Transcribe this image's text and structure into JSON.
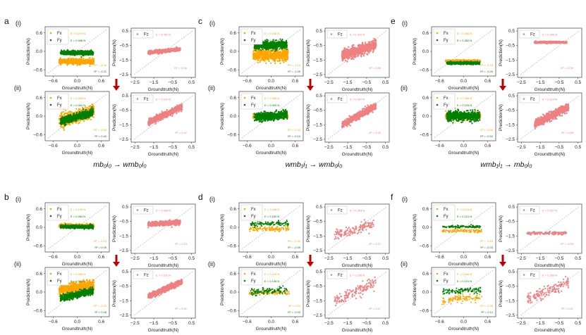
{
  "colors": {
    "fx": "#FFA500",
    "fy": "#008000",
    "fz": "#F08080",
    "arrow": "#C00000",
    "diag": "#888888"
  },
  "common": {
    "xlabel": "Groundtruth(N)",
    "ylabel": "Prediction(N)",
    "xy_ticks_xy": [
      "-0.6",
      "0.0",
      "0.6"
    ],
    "z_ticks_x": [
      "-2.5",
      "-1.5",
      "-0.5",
      "0.5"
    ],
    "z_ticks_y": [
      "0.5",
      "-0.5",
      "-1.5",
      "-2.5"
    ],
    "legend_fx": "Fx",
    "legend_fy": "Fy",
    "legend_fz": "Fz"
  },
  "chart_data": [
    {
      "type": "scatter",
      "panel": "a",
      "caption": "mb₀i₀ → wmb₀i₀",
      "rows": [
        {
          "row": "(i)",
          "xy": {
            "fx": {
              "E": "E = 0.279 N",
              "R2": "R² = -4.30",
              "y_center": -0.33,
              "y_spread": 0.07
            },
            "fy": {
              "E": "E = 0.096 N",
              "R2": "R² = -0.11",
              "y_center": -0.05,
              "y_spread": 0.05,
              "slope": 0.0
            },
            "density": "dense"
          },
          "z": {
            "E": "E = 0.452 N",
            "R2": "R² = -0.06",
            "x_range": [
              -1.8,
              -0.1
            ],
            "y_start": -1.0,
            "y_end": -0.75,
            "spread": 0.12
          }
        },
        {
          "row": "(ii)",
          "xy": {
            "fx": {
              "E": "E = 0.096 N",
              "R2": "R² = -0.04",
              "y_center": 0.0,
              "y_spread": 0.16,
              "slope": 0.35
            },
            "fy": {
              "E": "E = 0.062 N",
              "R2": "R² = 0.49",
              "y_center": -0.02,
              "y_spread": 0.1,
              "slope": 0.4
            },
            "density": "dense"
          },
          "z": {
            "E": "E = 0.102 N",
            "R2": "R² = 0.92",
            "x_range": [
              -1.8,
              0.0
            ],
            "y_start": -1.35,
            "y_end": -0.25,
            "spread": 0.22
          }
        }
      ]
    },
    {
      "type": "scatter",
      "panel": "b",
      "caption": "wmb₀i₀ → mb₀i₀",
      "rows": [
        {
          "row": "(i)",
          "xy": {
            "fx": {
              "E": "E = 0.109 N",
              "R2": "R² = -0.13",
              "y_center": 0.05,
              "y_spread": 0.04,
              "slope": 0.0
            },
            "fy": {
              "E": "E = 0.084 N",
              "R2": "R² = 0.05",
              "y_center": 0.02,
              "y_spread": 0.04,
              "slope": 0.0
            },
            "density": "dense"
          },
          "z": {
            "E": "E = 0.286 N",
            "R2": "R² = 0.13",
            "x_range": [
              -1.8,
              -0.1
            ],
            "y_start": -0.7,
            "y_end": -0.55,
            "spread": 0.15
          }
        },
        {
          "row": "(ii)",
          "xy": {
            "fx": {
              "E": "E = 0.095 N",
              "R2": "R² = -0.09",
              "y_center": 0.15,
              "y_spread": 0.14,
              "slope": 0.2
            },
            "fy": {
              "E": "E = 0.062 N",
              "R2": "R² = 0.48",
              "y_center": -0.08,
              "y_spread": 0.08,
              "slope": 0.3
            },
            "density": "dense"
          },
          "z": {
            "E": "E = 0.102 N",
            "R2": "R² = 0.91",
            "x_range": [
              -1.8,
              0.0
            ],
            "y_start": -1.2,
            "y_end": -0.2,
            "spread": 0.2
          }
        }
      ]
    },
    {
      "type": "scatter",
      "panel": "c",
      "caption": "wmb₁i₁ → wmb₀i₀",
      "rows": [
        {
          "row": "(i)",
          "xy": {
            "fx": {
              "E": "E = 0.168 N",
              "R2": "R² = -1.19",
              "y_center": -0.12,
              "y_spread": 0.16,
              "slope": 0.0
            },
            "fy": {
              "E": "E = 0.195 N",
              "R2": "R² = -2.45",
              "y_center": 0.2,
              "y_spread": 0.1,
              "slope": 0.05
            },
            "density": "dense"
          },
          "z": {
            "E": "E = 0.315 N",
            "R2": "R² = 0.86",
            "x_range": [
              -1.8,
              0.0
            ],
            "y_start": -1.2,
            "y_end": -0.45,
            "spread": 0.4
          }
        },
        {
          "row": "(ii)",
          "xy": {
            "fx": {
              "E": "E = 0.085 N",
              "R2": "R² = -0.00",
              "y_center": 0.0,
              "y_spread": 0.05,
              "slope": 0.0
            },
            "fy": {
              "E": "E = 0.093 N",
              "R2": "R² = -0.10",
              "y_center": 0.0,
              "y_spread": 0.1,
              "slope": 0.1
            },
            "density": "dense"
          },
          "z": {
            "E": "E = 0.097 N",
            "R2": "R² = 0.93",
            "x_range": [
              -1.8,
              0.0
            ],
            "y_start": -1.5,
            "y_end": -0.2,
            "spread": 0.25
          }
        }
      ]
    },
    {
      "type": "scatter",
      "panel": "d",
      "caption": "wmb₁i₁ → wmb₂i₂",
      "rows": [
        {
          "row": "(i)",
          "xy": {
            "fx": {
              "E": "E = 0.148 N",
              "R2": "R² = -0.32",
              "y_center": -0.05,
              "y_spread": 0.07,
              "slope": 0.0
            },
            "fy": {
              "E": "E = 0.180 N",
              "R2": "R² = -0.59",
              "y_center": 0.12,
              "y_spread": 0.06,
              "slope": 0.0
            },
            "density": "sparse"
          },
          "z": {
            "E": "E = 0.363 N",
            "R2": "R² = 0.37",
            "x_range": [
              -2.2,
              -0.1
            ],
            "y_start": -1.5,
            "y_end": -0.7,
            "spread": 0.35
          }
        },
        {
          "row": "(ii)",
          "xy": {
            "fx": {
              "E": "E = 0.129 N",
              "R2": "R² = 0.01",
              "y_center": -0.02,
              "y_spread": 0.06,
              "slope": 0.0
            },
            "fy": {
              "E": "E = 0.136 N",
              "R2": "R² = -0.03",
              "y_center": 0.05,
              "y_spread": 0.1,
              "slope": 0.1
            },
            "density": "sparse"
          },
          "z": {
            "E": "E = 0.236 N",
            "R2": "R² = 0.67",
            "x_range": [
              -2.2,
              0.0
            ],
            "y_start": -1.6,
            "y_end": -0.2,
            "spread": 0.4
          }
        }
      ]
    },
    {
      "type": "scatter",
      "panel": "e",
      "caption": "wmb₁i₁ → mb₀i₀",
      "rows": [
        {
          "row": "(i)",
          "xy": {
            "fx": {
              "E": "E = 0.286 N",
              "R2": "R² = -4.79",
              "y_center": -0.32,
              "y_spread": 0.03,
              "slope": 0.0
            },
            "fy": {
              "E": "E = 0.362 N",
              "R2": "R² = -9.26",
              "y_center": -0.38,
              "y_spread": 0.03,
              "slope": 0.0
            },
            "density": "dense"
          },
          "z": {
            "E": "E = 0.446 N",
            "R2": "R² = -0.39",
            "x_range": [
              -1.8,
              -0.1
            ],
            "y_start": -0.28,
            "y_end": -0.28,
            "spread": 0.06
          }
        },
        {
          "row": "(ii)",
          "xy": {
            "fx": {
              "E": "E = 0.098 N",
              "R2": "R² = -0.06",
              "y_center": 0.0,
              "y_spread": 0.08,
              "slope": 0.0
            },
            "fy": {
              "E": "E = 0.105 N",
              "R2": "R² = -0.52",
              "y_center": 0.0,
              "y_spread": 0.12,
              "slope": 0.0
            },
            "density": "dense"
          },
          "z": {
            "E": "E = 0.114 N",
            "R2": "R² = 0.89",
            "x_range": [
              -1.8,
              0.0
            ],
            "y_start": -1.45,
            "y_end": -0.25,
            "spread": 0.3
          }
        }
      ]
    },
    {
      "type": "scatter",
      "panel": "f",
      "caption": "mb₀i₀ → wmb₂i₂",
      "rows": [
        {
          "row": "(i)",
          "xy": {
            "fx": {
              "E": "E = 0.141 N",
              "R2": "R² = -0.18",
              "y_center": -0.12,
              "y_spread": 0.04,
              "slope": 0.0
            },
            "fy": {
              "E": "E = 0.141 N",
              "R2": "R² = -0.03",
              "y_center": 0.02,
              "y_spread": 0.03,
              "slope": 0.0
            },
            "density": "sparse"
          },
          "z": {
            "E": "E = 0.637 N",
            "R2": "R² = -0.59",
            "x_range": [
              -2.2,
              -0.1
            ],
            "y_start": -1.3,
            "y_end": -1.3,
            "spread": 0.1
          }
        },
        {
          "row": "(ii)",
          "xy": {
            "fx": {
              "E": "E = 0.156 N",
              "R2": "R² = -0.36",
              "y_center": -0.2,
              "y_spread": 0.1,
              "slope": 0.1
            },
            "fy": {
              "E": "E = 0.101 N",
              "R2": "R² = 0.12",
              "y_center": 0.05,
              "y_spread": 0.08,
              "slope": 0.1
            },
            "density": "sparse"
          },
          "z": {
            "E": "E = 0.269 N",
            "R2": "R² = 0.67",
            "x_range": [
              -2.2,
              0.0
            ],
            "y_start": -1.4,
            "y_end": -0.2,
            "spread": 0.4
          }
        }
      ]
    }
  ]
}
